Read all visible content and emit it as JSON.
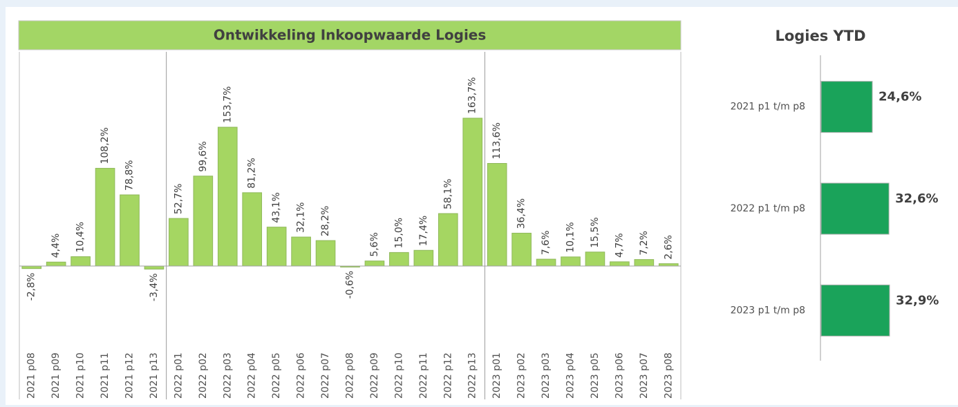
{
  "chart_data": [
    {
      "type": "bar",
      "title": "Ontwikkeling Inkoopwaarde Logies",
      "color": "#a5d662",
      "categories": [
        "2021 p08",
        "2021 p09",
        "2021 p10",
        "2021 p11",
        "2021 p12",
        "2021 p13",
        "2022 p01",
        "2022 p02",
        "2022 p03",
        "2022 p04",
        "2022 p05",
        "2022 p06",
        "2022 p07",
        "2022 p08",
        "2022 p09",
        "2022 p10",
        "2022 p11",
        "2022 p12",
        "2022 p13",
        "2023 p01",
        "2023 p02",
        "2023 p03",
        "2023 p04",
        "2023 p05",
        "2023 p06",
        "2023 p07",
        "2023 p08"
      ],
      "values": [
        -2.8,
        4.4,
        10.4,
        108.2,
        78.8,
        -3.4,
        52.7,
        99.6,
        153.7,
        81.2,
        43.1,
        32.1,
        28.2,
        -0.6,
        5.6,
        15.0,
        17.4,
        58.1,
        163.7,
        113.6,
        36.4,
        7.6,
        10.1,
        15.5,
        4.7,
        7.2,
        2.6
      ],
      "value_labels": [
        "-2,8%",
        "4,4%",
        "10,4%",
        "108,2%",
        "78,8%",
        "-3,4%",
        "52,7%",
        "99,6%",
        "153,7%",
        "81,2%",
        "43,1%",
        "32,1%",
        "28,2%",
        "-0,6%",
        "5,6%",
        "15,0%",
        "17,4%",
        "58,1%",
        "163,7%",
        "113,6%",
        "36,4%",
        "7,6%",
        "10,1%",
        "15,5%",
        "4,7%",
        "7,2%",
        "2,6%"
      ]
    },
    {
      "type": "barh",
      "title": "Logies YTD",
      "color": "#1aa35a",
      "categories": [
        "2021 p1 t/m p8",
        "2022 p1 t/m p8",
        "2023 p1 t/m p8"
      ],
      "values": [
        24.6,
        32.6,
        32.9
      ],
      "value_labels": [
        "24,6%",
        "32,6%",
        "32,9%"
      ]
    }
  ]
}
